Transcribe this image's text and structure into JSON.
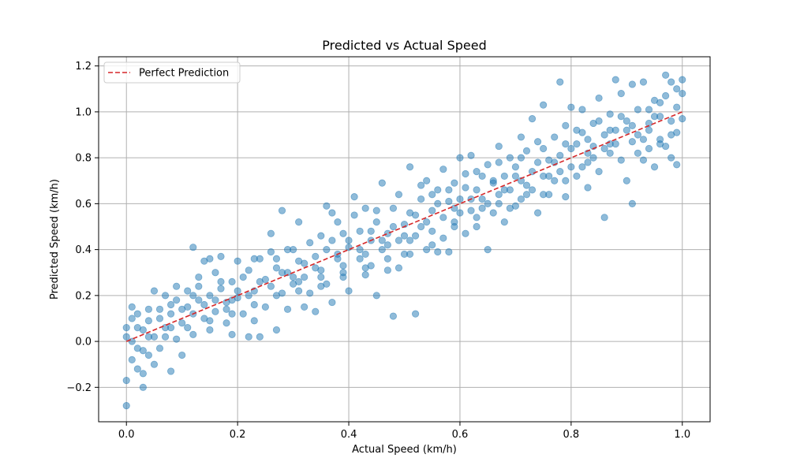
{
  "chart_data": {
    "type": "scatter",
    "title": "Predicted vs Actual Speed",
    "xlabel": "Actual Speed (km/h)",
    "ylabel": "Predicted Speed (km/h)",
    "xlim": [
      -0.05,
      1.05
    ],
    "ylim": [
      -0.35,
      1.24
    ],
    "xticks": [
      0.0,
      0.2,
      0.4,
      0.6,
      0.8,
      1.0
    ],
    "xtick_labels": [
      "0.0",
      "0.2",
      "0.4",
      "0.6",
      "0.8",
      "1.0"
    ],
    "yticks": [
      -0.2,
      0.0,
      0.2,
      0.4,
      0.6,
      0.8,
      1.0,
      1.2
    ],
    "ytick_labels": [
      "−0.2",
      "0.0",
      "0.2",
      "0.4",
      "0.6",
      "0.8",
      "1.0",
      "1.2"
    ],
    "grid": true,
    "legend": {
      "placement": "top-left",
      "entries": [
        "Perfect Prediction"
      ]
    },
    "point_color": "#1f77b4",
    "point_alpha": 0.5,
    "line_color": "#d62728",
    "reference_line": {
      "name": "Perfect Prediction",
      "x": [
        0.0,
        1.0
      ],
      "y": [
        0.0,
        1.0
      ]
    },
    "points": [
      [
        0.0,
        -0.28
      ],
      [
        0.0,
        -0.17
      ],
      [
        0.01,
        -0.08
      ],
      [
        0.0,
        0.02
      ],
      [
        0.0,
        0.06
      ],
      [
        0.01,
        0.1
      ],
      [
        0.01,
        0.15
      ],
      [
        0.02,
        0.12
      ],
      [
        0.02,
        -0.03
      ],
      [
        0.02,
        -0.12
      ],
      [
        0.03,
        -0.2
      ],
      [
        0.03,
        -0.14
      ],
      [
        0.03,
        0.05
      ],
      [
        0.04,
        -0.06
      ],
      [
        0.04,
        0.09
      ],
      [
        0.05,
        0.02
      ],
      [
        0.05,
        -0.1
      ],
      [
        0.06,
        0.14
      ],
      [
        0.06,
        -0.03
      ],
      [
        0.07,
        0.2
      ],
      [
        0.07,
        0.06
      ],
      [
        0.08,
        -0.13
      ],
      [
        0.08,
        0.12
      ],
      [
        0.09,
        0.01
      ],
      [
        0.09,
        0.18
      ],
      [
        0.1,
        0.08
      ],
      [
        0.1,
        -0.06
      ],
      [
        0.11,
        0.22
      ],
      [
        0.11,
        0.15
      ],
      [
        0.12,
        0.03
      ],
      [
        0.12,
        0.41
      ],
      [
        0.13,
        0.18
      ],
      [
        0.13,
        0.28
      ],
      [
        0.14,
        0.1
      ],
      [
        0.14,
        0.35
      ],
      [
        0.15,
        0.2
      ],
      [
        0.15,
        0.05
      ],
      [
        0.16,
        0.3
      ],
      [
        0.16,
        0.13
      ],
      [
        0.17,
        0.23
      ],
      [
        0.17,
        0.37
      ],
      [
        0.18,
        0.17
      ],
      [
        0.18,
        0.08
      ],
      [
        0.19,
        0.26
      ],
      [
        0.19,
        0.03
      ],
      [
        0.2,
        0.35
      ],
      [
        0.2,
        0.19
      ],
      [
        0.21,
        0.28
      ],
      [
        0.21,
        0.12
      ],
      [
        0.22,
        0.02
      ],
      [
        0.22,
        0.31
      ],
      [
        0.23,
        0.22
      ],
      [
        0.23,
        0.09
      ],
      [
        0.24,
        0.36
      ],
      [
        0.24,
        0.02
      ],
      [
        0.25,
        0.27
      ],
      [
        0.25,
        0.15
      ],
      [
        0.26,
        0.39
      ],
      [
        0.26,
        0.47
      ],
      [
        0.27,
        0.32
      ],
      [
        0.27,
        0.05
      ],
      [
        0.28,
        0.21
      ],
      [
        0.28,
        0.57
      ],
      [
        0.29,
        0.3
      ],
      [
        0.29,
        0.14
      ],
      [
        0.3,
        0.4
      ],
      [
        0.3,
        0.25
      ],
      [
        0.31,
        0.35
      ],
      [
        0.31,
        0.52
      ],
      [
        0.32,
        0.15
      ],
      [
        0.32,
        0.28
      ],
      [
        0.33,
        0.43
      ],
      [
        0.33,
        0.21
      ],
      [
        0.34,
        0.37
      ],
      [
        0.34,
        0.13
      ],
      [
        0.35,
        0.46
      ],
      [
        0.35,
        0.31
      ],
      [
        0.36,
        0.59
      ],
      [
        0.36,
        0.25
      ],
      [
        0.37,
        0.44
      ],
      [
        0.37,
        0.17
      ],
      [
        0.38,
        0.38
      ],
      [
        0.38,
        0.52
      ],
      [
        0.39,
        0.33
      ],
      [
        0.39,
        0.47
      ],
      [
        0.4,
        0.41
      ],
      [
        0.4,
        0.22
      ],
      [
        0.41,
        0.55
      ],
      [
        0.41,
        0.63
      ],
      [
        0.42,
        0.36
      ],
      [
        0.42,
        0.48
      ],
      [
        0.43,
        0.29
      ],
      [
        0.43,
        0.58
      ],
      [
        0.44,
        0.44
      ],
      [
        0.44,
        0.33
      ],
      [
        0.45,
        0.52
      ],
      [
        0.45,
        0.2
      ],
      [
        0.46,
        0.4
      ],
      [
        0.46,
        0.69
      ],
      [
        0.47,
        0.47
      ],
      [
        0.47,
        0.31
      ],
      [
        0.48,
        0.58
      ],
      [
        0.48,
        0.11
      ],
      [
        0.49,
        0.44
      ],
      [
        0.49,
        0.64
      ],
      [
        0.5,
        0.51
      ],
      [
        0.5,
        0.38
      ],
      [
        0.51,
        0.76
      ],
      [
        0.51,
        0.56
      ],
      [
        0.52,
        0.46
      ],
      [
        0.52,
        0.12
      ],
      [
        0.53,
        0.62
      ],
      [
        0.53,
        0.5
      ],
      [
        0.54,
        0.4
      ],
      [
        0.54,
        0.7
      ],
      [
        0.55,
        0.57
      ],
      [
        0.55,
        0.48
      ],
      [
        0.56,
        0.66
      ],
      [
        0.56,
        0.39
      ],
      [
        0.57,
        0.54
      ],
      [
        0.57,
        0.75
      ],
      [
        0.58,
        0.61
      ],
      [
        0.58,
        0.39
      ],
      [
        0.59,
        0.69
      ],
      [
        0.59,
        0.52
      ],
      [
        0.6,
        0.8
      ],
      [
        0.6,
        0.62
      ],
      [
        0.61,
        0.47
      ],
      [
        0.61,
        0.73
      ],
      [
        0.62,
        0.57
      ],
      [
        0.62,
        0.81
      ],
      [
        0.63,
        0.66
      ],
      [
        0.63,
        0.5
      ],
      [
        0.64,
        0.72
      ],
      [
        0.64,
        0.62
      ],
      [
        0.65,
        0.4
      ],
      [
        0.65,
        0.77
      ],
      [
        0.66,
        0.69
      ],
      [
        0.66,
        0.56
      ],
      [
        0.67,
        0.85
      ],
      [
        0.67,
        0.64
      ],
      [
        0.68,
        0.72
      ],
      [
        0.68,
        0.52
      ],
      [
        0.69,
        0.8
      ],
      [
        0.69,
        0.66
      ],
      [
        0.7,
        0.76
      ],
      [
        0.7,
        0.59
      ],
      [
        0.71,
        0.89
      ],
      [
        0.71,
        0.7
      ],
      [
        0.72,
        0.64
      ],
      [
        0.72,
        0.83
      ],
      [
        0.73,
        0.97
      ],
      [
        0.73,
        0.74
      ],
      [
        0.74,
        0.56
      ],
      [
        0.74,
        0.87
      ],
      [
        0.75,
        0.72
      ],
      [
        0.75,
        1.03
      ],
      [
        0.76,
        0.79
      ],
      [
        0.76,
        0.64
      ],
      [
        0.77,
        0.89
      ],
      [
        0.77,
        0.7
      ],
      [
        0.78,
        1.13
      ],
      [
        0.78,
        0.81
      ],
      [
        0.79,
        0.63
      ],
      [
        0.79,
        0.94
      ],
      [
        0.8,
        0.76
      ],
      [
        0.8,
        1.02
      ],
      [
        0.81,
        0.86
      ],
      [
        0.81,
        0.72
      ],
      [
        0.82,
        0.91
      ],
      [
        0.82,
        1.01
      ],
      [
        0.83,
        0.78
      ],
      [
        0.83,
        0.67
      ],
      [
        0.84,
        0.95
      ],
      [
        0.84,
        0.85
      ],
      [
        0.85,
        1.06
      ],
      [
        0.85,
        0.74
      ],
      [
        0.86,
        0.9
      ],
      [
        0.86,
        0.54
      ],
      [
        0.87,
        0.99
      ],
      [
        0.87,
        0.82
      ],
      [
        0.88,
        1.14
      ],
      [
        0.88,
        0.92
      ],
      [
        0.89,
        0.79
      ],
      [
        0.89,
        1.08
      ],
      [
        0.9,
        0.96
      ],
      [
        0.9,
        0.7
      ],
      [
        0.91,
        1.12
      ],
      [
        0.91,
        0.87
      ],
      [
        0.91,
        0.6
      ],
      [
        0.92,
        1.01
      ],
      [
        0.92,
        0.9
      ],
      [
        0.93,
        0.79
      ],
      [
        0.93,
        1.13
      ],
      [
        0.94,
        0.95
      ],
      [
        0.94,
        0.84
      ],
      [
        0.95,
        1.05
      ],
      [
        0.95,
        0.76
      ],
      [
        0.96,
        0.98
      ],
      [
        0.96,
        0.88
      ],
      [
        0.97,
        1.16
      ],
      [
        0.97,
        1.07
      ],
      [
        0.97,
        0.85
      ],
      [
        0.98,
        1.13
      ],
      [
        0.98,
        0.96
      ],
      [
        0.98,
        0.8
      ],
      [
        0.99,
        1.1
      ],
      [
        0.99,
        1.02
      ],
      [
        0.99,
        0.91
      ],
      [
        1.0,
        1.14
      ],
      [
        1.0,
        0.97
      ],
      [
        1.0,
        1.08
      ],
      [
        0.99,
        0.77
      ],
      [
        0.96,
        1.04
      ],
      [
        0.94,
        1.01
      ],
      [
        0.9,
        0.92
      ],
      [
        0.88,
        0.86
      ],
      [
        0.86,
        0.84
      ],
      [
        0.84,
        0.8
      ],
      [
        0.82,
        0.76
      ],
      [
        0.8,
        0.84
      ],
      [
        0.78,
        0.74
      ],
      [
        0.76,
        0.72
      ],
      [
        0.74,
        0.78
      ],
      [
        0.72,
        0.68
      ],
      [
        0.7,
        0.72
      ],
      [
        0.68,
        0.66
      ],
      [
        0.66,
        0.7
      ],
      [
        0.64,
        0.58
      ],
      [
        0.62,
        0.62
      ],
      [
        0.6,
        0.56
      ],
      [
        0.58,
        0.66
      ],
      [
        0.56,
        0.6
      ],
      [
        0.54,
        0.52
      ],
      [
        0.52,
        0.55
      ],
      [
        0.5,
        0.46
      ],
      [
        0.48,
        0.5
      ],
      [
        0.46,
        0.44
      ],
      [
        0.44,
        0.48
      ],
      [
        0.42,
        0.4
      ],
      [
        0.4,
        0.44
      ],
      [
        0.38,
        0.36
      ],
      [
        0.36,
        0.4
      ],
      [
        0.34,
        0.32
      ],
      [
        0.32,
        0.34
      ],
      [
        0.3,
        0.28
      ],
      [
        0.28,
        0.3
      ],
      [
        0.26,
        0.24
      ],
      [
        0.24,
        0.26
      ],
      [
        0.22,
        0.2
      ],
      [
        0.2,
        0.22
      ],
      [
        0.18,
        0.14
      ],
      [
        0.16,
        0.18
      ],
      [
        0.14,
        0.16
      ],
      [
        0.12,
        0.12
      ],
      [
        0.1,
        0.14
      ],
      [
        0.08,
        0.06
      ],
      [
        0.06,
        0.1
      ],
      [
        0.04,
        0.02
      ],
      [
        0.02,
        0.06
      ],
      [
        0.05,
        0.22
      ],
      [
        0.09,
        0.24
      ],
      [
        0.13,
        0.24
      ],
      [
        0.15,
        0.36
      ],
      [
        0.17,
        0.26
      ],
      [
        0.19,
        0.18
      ],
      [
        0.23,
        0.36
      ],
      [
        0.27,
        0.36
      ],
      [
        0.29,
        0.4
      ],
      [
        0.31,
        0.22
      ],
      [
        0.35,
        0.24
      ],
      [
        0.37,
        0.56
      ],
      [
        0.39,
        0.28
      ],
      [
        0.43,
        0.38
      ],
      [
        0.45,
        0.57
      ],
      [
        0.47,
        0.42
      ],
      [
        0.49,
        0.32
      ],
      [
        0.51,
        0.44
      ],
      [
        0.53,
        0.68
      ],
      [
        0.55,
        0.64
      ],
      [
        0.57,
        0.45
      ],
      [
        0.59,
        0.58
      ],
      [
        0.61,
        0.67
      ],
      [
        0.63,
        0.74
      ],
      [
        0.65,
        0.6
      ],
      [
        0.67,
        0.78
      ],
      [
        0.69,
        0.58
      ],
      [
        0.71,
        0.8
      ],
      [
        0.73,
        0.66
      ],
      [
        0.75,
        0.84
      ],
      [
        0.77,
        0.78
      ],
      [
        0.79,
        0.86
      ],
      [
        0.81,
        0.92
      ],
      [
        0.83,
        0.88
      ],
      [
        0.85,
        0.96
      ],
      [
        0.87,
        0.92
      ],
      [
        0.89,
        0.98
      ],
      [
        0.92,
        0.82
      ],
      [
        0.94,
        0.92
      ],
      [
        0.96,
        0.86
      ],
      [
        0.98,
        0.9
      ],
      [
        0.95,
        0.98
      ],
      [
        0.93,
        0.88
      ],
      [
        0.91,
        0.94
      ],
      [
        0.87,
        0.86
      ],
      [
        0.83,
        0.82
      ],
      [
        0.79,
        0.7
      ],
      [
        0.75,
        0.64
      ],
      [
        0.71,
        0.62
      ],
      [
        0.67,
        0.6
      ],
      [
        0.63,
        0.54
      ],
      [
        0.59,
        0.5
      ],
      [
        0.55,
        0.42
      ],
      [
        0.51,
        0.38
      ],
      [
        0.47,
        0.36
      ],
      [
        0.43,
        0.32
      ],
      [
        0.39,
        0.3
      ],
      [
        0.35,
        0.28
      ],
      [
        0.31,
        0.26
      ],
      [
        0.27,
        0.2
      ],
      [
        0.23,
        0.16
      ],
      [
        0.19,
        0.12
      ],
      [
        0.15,
        0.09
      ],
      [
        0.11,
        0.06
      ],
      [
        0.07,
        0.02
      ],
      [
        0.03,
        -0.04
      ],
      [
        0.01,
        0.0
      ],
      [
        0.04,
        0.14
      ],
      [
        0.08,
        0.16
      ],
      [
        0.12,
        0.2
      ]
    ]
  }
}
